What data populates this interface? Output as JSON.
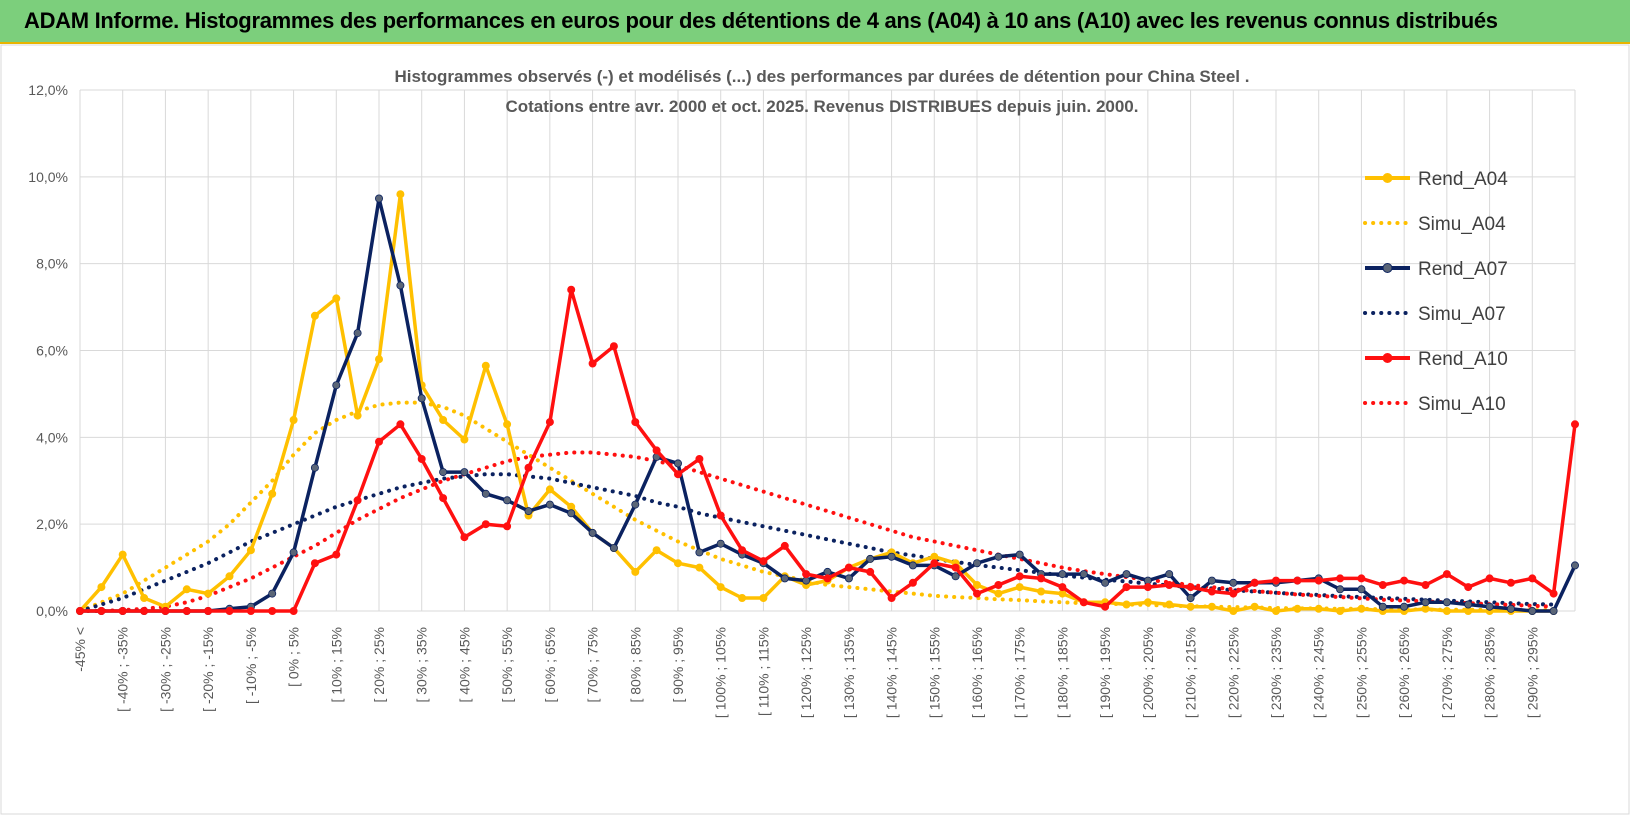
{
  "banner": {
    "title": "ADAM Informe. Histogrammes des performances en euros pour des détentions de 4 ans (A04) à 10 ans (A10) avec les revenus connus distribués"
  },
  "colors": {
    "banner_bg": "#7ccf7c",
    "rend_a04": "#ffc000",
    "simu_a04": "#ffc000",
    "rend_a07": "#0b2260",
    "simu_a07": "#0b2260",
    "rend_a10": "#ff1010",
    "simu_a10": "#ff1010",
    "a07_marker": "#5a6577"
  },
  "chart_data": {
    "type": "line",
    "title": "Histogrammes observés (-) et modélisés (...) des performances par durées de détention pour China Steel .",
    "subtitle": "Cotations entre avr. 2000 et oct. 2025.  Revenus DISTRIBUES depuis juin. 2000.",
    "xlabel": "",
    "ylabel": "",
    "ylim": [
      0,
      12
    ],
    "yticks": [
      "0,0%",
      "2,0%",
      "4,0%",
      "6,0%",
      "8,0%",
      "10,0%",
      "12,0%"
    ],
    "grid": true,
    "legend_position": "right",
    "x_tick_labels": [
      "-45% <",
      "[ -40% ; -35%",
      "[ -30% ; -25%",
      "[ -20% ; -15%",
      "[ -10% ; -5%",
      "[ 0% ; 5%",
      "[ 10% ; 15%",
      "[ 20% ; 25%",
      "[ 30% ; 35%",
      "[ 40% ; 45%",
      "[ 50% ; 55%",
      "[ 60% ; 65%",
      "[ 70% ; 75%",
      "[ 80% ; 85%",
      "[ 90% ; 95%",
      "[ 100% ; 105%",
      "[ 110% ; 115%",
      "[ 120% ; 125%",
      "[ 130% ; 135%",
      "[ 140% ; 145%",
      "[ 150% ; 155%",
      "[ 160% ; 165%",
      "[ 170% ; 175%",
      "[ 180% ; 185%",
      "[ 190% ; 195%",
      "[ 200% ; 205%",
      "[ 210% ; 215%",
      "[ 220% ; 225%",
      "[ 230% ; 235%",
      "[ 240% ; 245%",
      "[ 250% ; 255%",
      "[ 260% ; 265%",
      "[ 270% ; 275%",
      "[ 280% ; 285%",
      "[ 290% ; 295%"
    ],
    "series": [
      {
        "name": "Rend_A04",
        "style": "solid",
        "values": [
          0.0,
          0.55,
          1.3,
          0.3,
          0.1,
          0.5,
          0.4,
          0.8,
          1.4,
          2.7,
          4.4,
          6.8,
          7.2,
          4.5,
          5.8,
          9.6,
          5.2,
          4.4,
          3.95,
          5.65,
          4.3,
          2.2,
          2.8,
          2.4,
          1.8,
          1.45,
          0.9,
          1.4,
          1.1,
          1.0,
          0.55,
          0.3,
          0.3,
          0.8,
          0.6,
          0.7,
          1.0,
          1.2,
          1.35,
          1.1,
          1.25,
          1.1,
          0.6,
          0.4,
          0.55,
          0.45,
          0.4,
          0.2,
          0.2,
          0.15,
          0.2,
          0.15,
          0.1,
          0.1,
          0.0,
          0.1,
          0.0,
          0.05,
          0.05,
          0.0,
          0.05,
          0.0,
          0.0,
          0.05,
          0.0,
          0.0,
          0.0,
          0.0,
          0.0,
          0.0
        ]
      },
      {
        "name": "Simu_A04",
        "style": "dotted",
        "values": [
          0.0,
          0.2,
          0.4,
          0.7,
          1.0,
          1.3,
          1.6,
          2.0,
          2.5,
          3.0,
          3.6,
          4.1,
          4.4,
          4.6,
          4.75,
          4.8,
          4.8,
          4.7,
          4.5,
          4.2,
          3.9,
          3.6,
          3.3,
          3.0,
          2.7,
          2.4,
          2.1,
          1.85,
          1.6,
          1.4,
          1.2,
          1.05,
          0.9,
          0.8,
          0.7,
          0.6,
          0.55,
          0.5,
          0.45,
          0.4,
          0.35,
          0.32,
          0.3,
          0.27,
          0.25,
          0.22,
          0.2,
          0.18,
          0.17,
          0.15,
          0.14,
          0.12,
          0.11,
          0.1,
          0.09,
          0.08,
          0.07,
          0.06,
          0.06,
          0.05,
          0.05,
          0.04,
          0.04,
          0.03,
          0.03,
          0.03,
          0.02,
          0.02,
          0.02,
          0.02
        ]
      },
      {
        "name": "Rend_A07",
        "style": "solid",
        "values": [
          0.0,
          0.0,
          0.0,
          0.0,
          0.0,
          0.0,
          0.0,
          0.05,
          0.1,
          0.4,
          1.35,
          3.3,
          5.2,
          6.4,
          9.5,
          7.5,
          4.9,
          3.2,
          3.2,
          2.7,
          2.55,
          2.3,
          2.45,
          2.25,
          1.8,
          1.45,
          2.45,
          3.55,
          3.4,
          1.35,
          1.55,
          1.3,
          1.1,
          0.75,
          0.7,
          0.9,
          0.75,
          1.2,
          1.25,
          1.05,
          1.05,
          0.8,
          1.1,
          1.25,
          1.3,
          0.85,
          0.85,
          0.85,
          0.65,
          0.85,
          0.7,
          0.85,
          0.3,
          0.7,
          0.65,
          0.65,
          0.65,
          0.7,
          0.75,
          0.5,
          0.5,
          0.1,
          0.1,
          0.2,
          0.2,
          0.15,
          0.1,
          0.05,
          0.0,
          0.0,
          1.05
        ]
      },
      {
        "name": "Simu_A07",
        "style": "dotted",
        "values": [
          0.0,
          0.15,
          0.3,
          0.5,
          0.7,
          0.9,
          1.1,
          1.35,
          1.6,
          1.8,
          2.0,
          2.2,
          2.4,
          2.55,
          2.7,
          2.85,
          2.95,
          3.05,
          3.1,
          3.15,
          3.15,
          3.1,
          3.05,
          2.95,
          2.85,
          2.75,
          2.65,
          2.5,
          2.4,
          2.25,
          2.15,
          2.05,
          1.95,
          1.85,
          1.75,
          1.65,
          1.55,
          1.45,
          1.35,
          1.28,
          1.2,
          1.13,
          1.06,
          1.0,
          0.94,
          0.88,
          0.82,
          0.77,
          0.72,
          0.68,
          0.63,
          0.59,
          0.55,
          0.52,
          0.48,
          0.45,
          0.42,
          0.39,
          0.37,
          0.34,
          0.32,
          0.3,
          0.28,
          0.26,
          0.24,
          0.22,
          0.2,
          0.18,
          0.16,
          0.15
        ]
      },
      {
        "name": "Rend_A10",
        "style": "solid",
        "values": [
          0.0,
          0.0,
          0.0,
          0.0,
          0.0,
          0.0,
          0.0,
          0.0,
          0.0,
          0.0,
          0.0,
          1.1,
          1.3,
          2.55,
          3.9,
          4.3,
          3.5,
          2.6,
          1.7,
          2.0,
          1.95,
          3.3,
          4.35,
          7.4,
          5.7,
          6.1,
          4.35,
          3.7,
          3.15,
          3.5,
          2.2,
          1.4,
          1.15,
          1.5,
          0.85,
          0.75,
          1.0,
          0.9,
          0.3,
          0.65,
          1.1,
          1.0,
          0.4,
          0.6,
          0.8,
          0.75,
          0.55,
          0.2,
          0.1,
          0.55,
          0.55,
          0.6,
          0.55,
          0.45,
          0.4,
          0.65,
          0.7,
          0.7,
          0.7,
          0.75,
          0.75,
          0.6,
          0.7,
          0.6,
          0.85,
          0.55,
          0.75,
          0.65,
          0.75,
          0.4,
          4.3
        ]
      },
      {
        "name": "Simu_A10",
        "style": "dotted",
        "values": [
          0.0,
          0.0,
          0.02,
          0.05,
          0.1,
          0.2,
          0.35,
          0.55,
          0.75,
          1.0,
          1.25,
          1.5,
          1.8,
          2.1,
          2.35,
          2.6,
          2.8,
          3.0,
          3.15,
          3.3,
          3.45,
          3.55,
          3.6,
          3.65,
          3.65,
          3.6,
          3.55,
          3.45,
          3.35,
          3.2,
          3.05,
          2.9,
          2.75,
          2.6,
          2.45,
          2.3,
          2.15,
          2.0,
          1.85,
          1.7,
          1.6,
          1.5,
          1.4,
          1.3,
          1.2,
          1.1,
          1.0,
          0.92,
          0.85,
          0.78,
          0.72,
          0.66,
          0.6,
          0.55,
          0.5,
          0.46,
          0.42,
          0.38,
          0.35,
          0.32,
          0.29,
          0.26,
          0.24,
          0.22,
          0.2,
          0.18,
          0.16,
          0.14,
          0.12,
          0.1
        ]
      }
    ]
  }
}
